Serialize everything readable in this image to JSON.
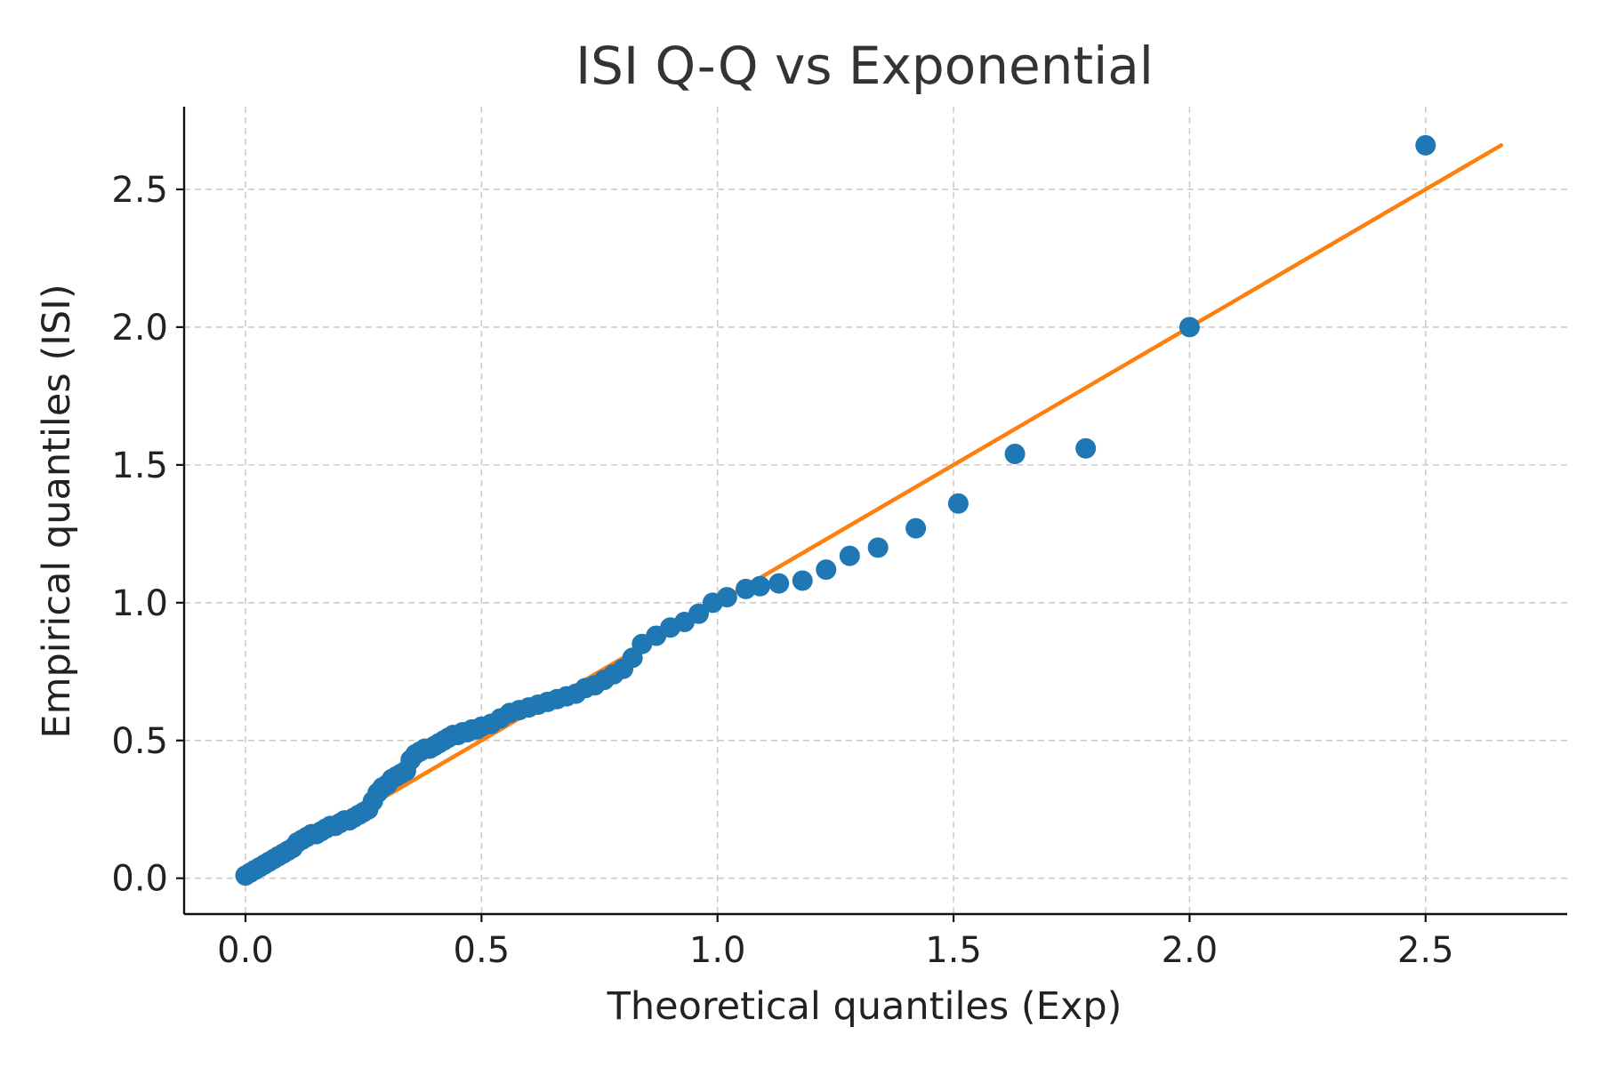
{
  "chart_data": {
    "type": "scatter",
    "title": "ISI Q-Q vs Exponential",
    "xlabel": "Theoretical quantiles (Exp)",
    "ylabel": "Empirical quantiles (ISI)",
    "xlim": [
      -0.13,
      2.8
    ],
    "ylim": [
      -0.13,
      2.8
    ],
    "xticks": [
      0.0,
      0.5,
      1.0,
      1.5,
      2.0,
      2.5
    ],
    "yticks": [
      0.0,
      0.5,
      1.0,
      1.5,
      2.0,
      2.5
    ],
    "xtick_labels": [
      "0.0",
      "0.5",
      "1.0",
      "1.5",
      "2.0",
      "2.5"
    ],
    "ytick_labels": [
      "0.0",
      "0.5",
      "1.0",
      "1.5",
      "2.0",
      "2.5"
    ],
    "grid": true,
    "colors": {
      "points": "#1f77b4",
      "reference_line": "#ff7f0e"
    },
    "series": [
      {
        "kind": "scatter",
        "x": [
          0.0,
          0.01,
          0.02,
          0.03,
          0.04,
          0.05,
          0.06,
          0.07,
          0.08,
          0.09,
          0.1,
          0.11,
          0.12,
          0.13,
          0.14,
          0.15,
          0.16,
          0.17,
          0.18,
          0.19,
          0.2,
          0.21,
          0.22,
          0.23,
          0.24,
          0.25,
          0.26,
          0.27,
          0.28,
          0.29,
          0.3,
          0.31,
          0.32,
          0.33,
          0.34,
          0.35,
          0.36,
          0.37,
          0.38,
          0.39,
          0.4,
          0.41,
          0.42,
          0.43,
          0.44,
          0.45,
          0.46,
          0.47,
          0.48,
          0.49,
          0.5,
          0.52,
          0.54,
          0.56,
          0.58,
          0.6,
          0.62,
          0.64,
          0.66,
          0.68,
          0.7,
          0.72,
          0.74,
          0.76,
          0.78,
          0.8,
          0.82,
          0.84,
          0.87,
          0.9,
          0.93,
          0.96,
          0.99,
          1.02,
          1.06,
          1.09,
          1.13,
          1.18,
          1.23,
          1.28,
          1.34,
          1.42,
          1.51,
          1.63,
          1.78,
          2.0,
          2.5
        ],
        "y": [
          0.01,
          0.02,
          0.03,
          0.04,
          0.05,
          0.06,
          0.07,
          0.08,
          0.09,
          0.1,
          0.11,
          0.13,
          0.14,
          0.15,
          0.16,
          0.16,
          0.17,
          0.18,
          0.19,
          0.19,
          0.2,
          0.21,
          0.21,
          0.22,
          0.23,
          0.24,
          0.25,
          0.28,
          0.31,
          0.33,
          0.34,
          0.36,
          0.37,
          0.38,
          0.39,
          0.43,
          0.45,
          0.46,
          0.47,
          0.47,
          0.48,
          0.49,
          0.5,
          0.51,
          0.52,
          0.52,
          0.53,
          0.53,
          0.54,
          0.54,
          0.55,
          0.56,
          0.58,
          0.6,
          0.61,
          0.62,
          0.63,
          0.64,
          0.65,
          0.66,
          0.67,
          0.69,
          0.7,
          0.72,
          0.74,
          0.76,
          0.8,
          0.85,
          0.88,
          0.91,
          0.93,
          0.96,
          1.0,
          1.02,
          1.05,
          1.06,
          1.07,
          1.08,
          1.12,
          1.17,
          1.2,
          1.27,
          1.36,
          1.54,
          1.56,
          2.0,
          2.66
        ]
      },
      {
        "kind": "line",
        "x": [
          0.0,
          2.66
        ],
        "y": [
          0.0,
          2.66
        ]
      }
    ]
  }
}
